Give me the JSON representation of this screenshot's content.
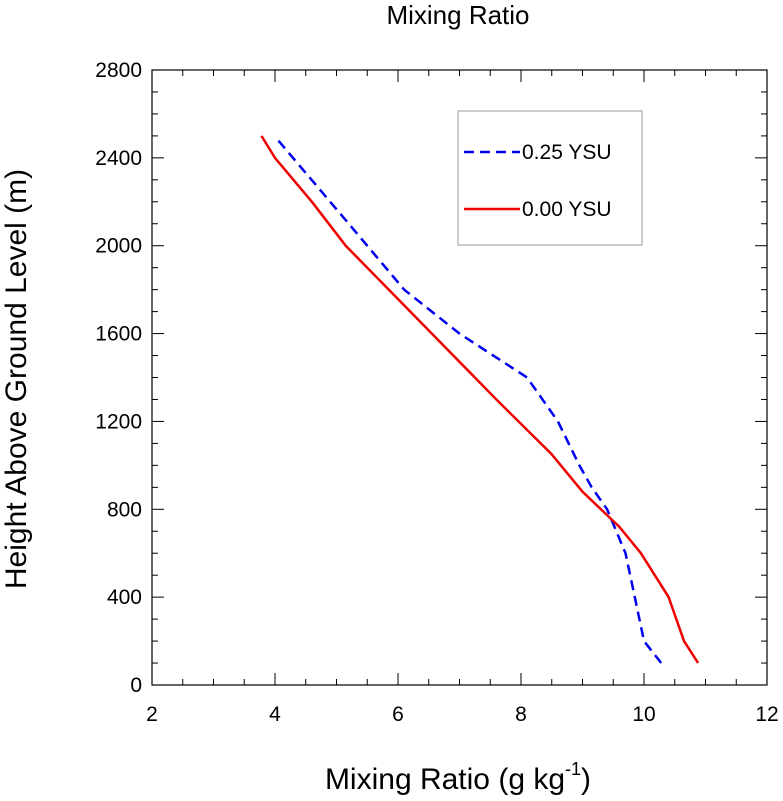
{
  "chart_data": {
    "type": "line",
    "title": "Mixing Ratio",
    "xlabel": {
      "main": "Mixing Ratio (g kg",
      "sup": "-1",
      "close": ")"
    },
    "ylabel": "Height Above Ground Level (m)",
    "xlim": [
      2,
      12
    ],
    "ylim": [
      0,
      2800
    ],
    "xticks": [
      2,
      4,
      6,
      8,
      10,
      12
    ],
    "yticks": [
      0,
      400,
      800,
      1200,
      1600,
      2000,
      2400,
      2800
    ],
    "legend_position": "top-right",
    "series": [
      {
        "name": "0.25 YSU",
        "color": "#0000ee",
        "dash": "dashed",
        "points": [
          [
            10.28,
            100
          ],
          [
            10.0,
            200
          ],
          [
            9.85,
            400
          ],
          [
            9.7,
            600
          ],
          [
            9.4,
            800
          ],
          [
            9.15,
            900
          ],
          [
            8.95,
            1000
          ],
          [
            8.6,
            1200
          ],
          [
            8.1,
            1400
          ],
          [
            7.0,
            1600
          ],
          [
            6.1,
            1800
          ],
          [
            5.2,
            2100
          ],
          [
            4.05,
            2480
          ]
        ]
      },
      {
        "name": "0.00 YSU",
        "color": "#ee0000",
        "dash": "solid",
        "points": [
          [
            10.88,
            100
          ],
          [
            10.65,
            200
          ],
          [
            10.4,
            400
          ],
          [
            9.95,
            600
          ],
          [
            9.6,
            720
          ],
          [
            9.0,
            880
          ],
          [
            8.5,
            1050
          ],
          [
            7.6,
            1300
          ],
          [
            6.2,
            1700
          ],
          [
            5.15,
            2000
          ],
          [
            4.6,
            2200
          ],
          [
            4.0,
            2400
          ],
          [
            3.78,
            2500
          ]
        ]
      }
    ]
  }
}
